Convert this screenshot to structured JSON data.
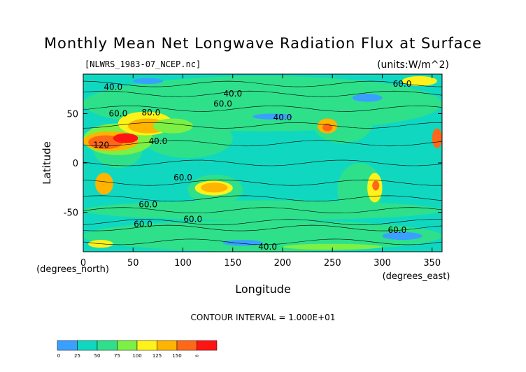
{
  "chart_data": {
    "type": "heatmap",
    "title": "Monthly Mean Net Longwave Radiation Flux at Surface",
    "subtitle_left": "[NLWRS_1983-07_NCEP.nc]",
    "subtitle_right": "(units:W/m^2)",
    "xlabel": "Longitude",
    "ylabel": "Latitude",
    "x_unit_label": "(degrees_east)",
    "y_unit_label": "(degrees_north)",
    "xlim": [
      0,
      360
    ],
    "ylim": [
      -90,
      90
    ],
    "x_ticks": [
      0,
      50,
      100,
      150,
      200,
      250,
      300,
      350
    ],
    "y_ticks": [
      50,
      0,
      -50
    ],
    "contour_interval_text": "CONTOUR INTERVAL = 1.000E+01",
    "contour_labels": [
      {
        "text": "40.0",
        "lon": 30,
        "lat": 77
      },
      {
        "text": "40.0",
        "lon": 150,
        "lat": 70
      },
      {
        "text": "60.0",
        "lon": 140,
        "lat": 60
      },
      {
        "text": "60.0",
        "lon": 35,
        "lat": 50
      },
      {
        "text": "80.0",
        "lon": 68,
        "lat": 51
      },
      {
        "text": "40.0",
        "lon": 75,
        "lat": 22
      },
      {
        "text": "40.0",
        "lon": 200,
        "lat": 46
      },
      {
        "text": "120",
        "lon": 18,
        "lat": 18
      },
      {
        "text": "60.0",
        "lon": 100,
        "lat": -15
      },
      {
        "text": "60.0",
        "lon": 65,
        "lat": -42
      },
      {
        "text": "60.0",
        "lon": 60,
        "lat": -62
      },
      {
        "text": "60.0",
        "lon": 110,
        "lat": -57
      },
      {
        "text": "60.0",
        "lon": 315,
        "lat": -68
      },
      {
        "text": "60.0",
        "lon": 320,
        "lat": 80
      },
      {
        "text": "40.0",
        "lon": 185,
        "lat": -85
      }
    ],
    "colorbar": {
      "ticks": [
        "0",
        "25",
        "50",
        "75",
        "100",
        "125",
        "150",
        "∞"
      ],
      "colors": [
        "#3aa0ff",
        "#10d8c0",
        "#2ee08a",
        "#7cf044",
        "#fff21a",
        "#ffb400",
        "#ff6818",
        "#ff1414"
      ]
    },
    "frame_color": "#000000"
  }
}
